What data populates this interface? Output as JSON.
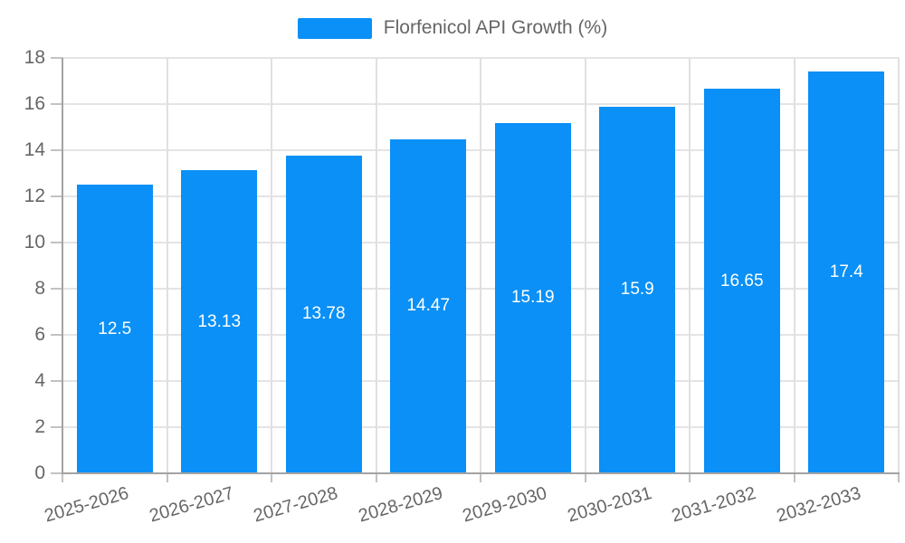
{
  "legend": {
    "label": "Florfenicol API Growth (%)"
  },
  "colors": {
    "bar": "#0A90F6",
    "value_label": "#FFFFFF",
    "axis_text": "#666666",
    "grid": "#E4E4E4",
    "axis_line": "#A3A3A3",
    "background": "#FFFFFF"
  },
  "chart_data": {
    "type": "bar",
    "title": "Florfenicol API Growth (%)",
    "series_name": "Florfenicol API Growth (%)",
    "categories": [
      "2025-2026",
      "2026-2027",
      "2027-2028",
      "2028-2029",
      "2029-2030",
      "2030-2031",
      "2031-2032",
      "2032-2033"
    ],
    "values": [
      12.5,
      13.13,
      13.78,
      14.47,
      15.19,
      15.9,
      16.65,
      17.4
    ],
    "value_labels": [
      "12.5",
      "13.13",
      "13.78",
      "14.47",
      "15.19",
      "15.9",
      "16.65",
      "17.4"
    ],
    "xlabel": "",
    "ylabel": "",
    "ylim": [
      0,
      18
    ],
    "y_ticks": [
      0,
      2,
      4,
      6,
      8,
      10,
      12,
      14,
      16,
      18
    ],
    "grid": true,
    "legend_position": "top",
    "bar_labels_inside": true,
    "x_label_rotation_deg": -16
  }
}
